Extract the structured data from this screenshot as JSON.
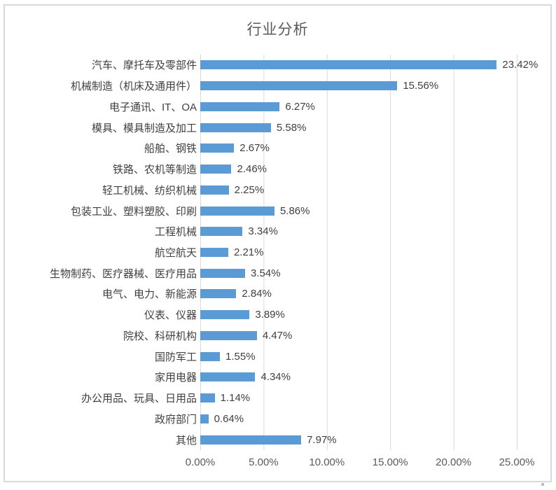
{
  "chart_data": {
    "type": "bar",
    "orientation": "horizontal",
    "title": "行业分析",
    "categories": [
      "汽车、摩托车及零部件",
      "机械制造（机床及通用件）",
      "电子通讯、IT、OA",
      "模具、模具制造及加工",
      "船舶、钢铁",
      "铁路、农机等制造",
      "轻工机械、纺织机械",
      "包装工业、塑料塑胶、印刷",
      "工程机械",
      "航空航天",
      "生物制药、医疗器械、医疗用品",
      "电气、电力、新能源",
      "仪表、仪器",
      "院校、科研机构",
      "国防军工",
      "家用电器",
      "办公用品、玩具、日用品",
      "政府部门",
      "其他"
    ],
    "values": [
      23.42,
      15.56,
      6.27,
      5.58,
      2.67,
      2.46,
      2.25,
      5.86,
      3.34,
      2.21,
      3.54,
      2.84,
      3.89,
      4.47,
      1.55,
      4.34,
      1.14,
      0.64,
      7.97
    ],
    "value_labels": [
      "23.42%",
      "15.56%",
      "6.27%",
      "5.58%",
      "2.67%",
      "2.46%",
      "2.25%",
      "5.86%",
      "3.34%",
      "2.21%",
      "3.54%",
      "2.84%",
      "3.89%",
      "4.47%",
      "1.55%",
      "4.34%",
      "1.14%",
      "0.64%",
      "7.97%"
    ],
    "x_ticks": [
      "0.00%",
      "5.00%",
      "10.00%",
      "15.00%",
      "20.00%",
      "25.00%"
    ],
    "xlim": [
      0,
      25
    ],
    "xlabel": "",
    "ylabel": "",
    "grid": "vertical-only",
    "legend": "none",
    "colors": {
      "bar": "#5B9BD5",
      "gridline": "#D9D9D9",
      "title_text": "#595959",
      "label_text": "#404040",
      "tick_text": "#595959",
      "chart_border": "#D9D9D9"
    }
  }
}
